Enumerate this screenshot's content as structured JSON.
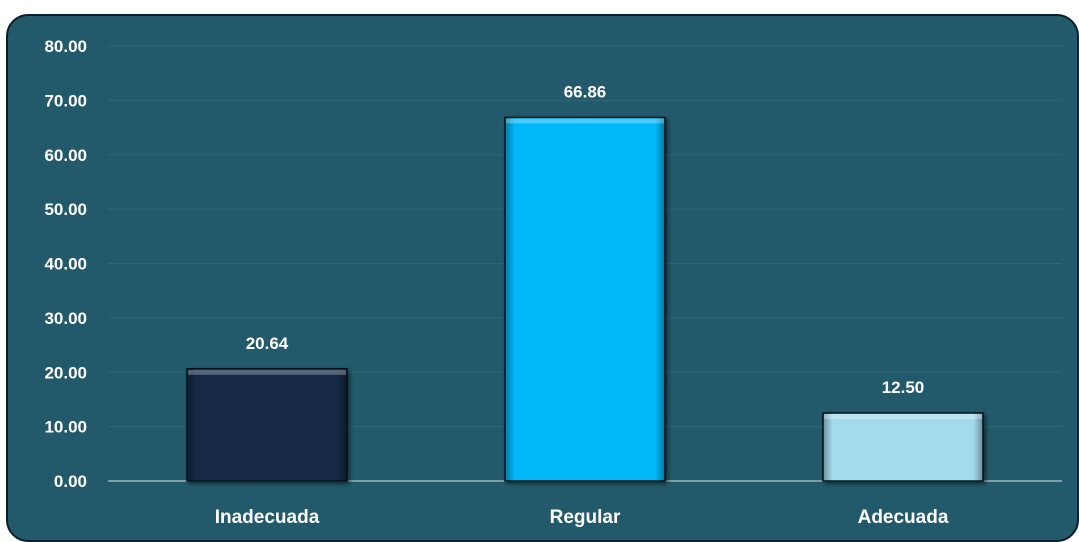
{
  "chart_data": {
    "type": "bar",
    "categories": [
      "Inadecuada",
      "Regular",
      "Adecuada"
    ],
    "values": [
      20.64,
      66.86,
      12.5
    ],
    "value_labels": [
      "20.64",
      "66.86",
      "12.50"
    ],
    "bar_colors": [
      "#172a47",
      "#00b7f8",
      "#a3daec"
    ],
    "ylim": [
      0,
      80
    ],
    "yticks": [
      "0.00",
      "10.00",
      "20.00",
      "30.00",
      "40.00",
      "50.00",
      "60.00",
      "70.00",
      "80.00"
    ],
    "grid": true,
    "legend": "none",
    "title": "",
    "xlabel": "",
    "ylabel": ""
  },
  "colors": {
    "background": "#235a6b",
    "border": "#0b1e2a",
    "gridline": "#2f6677",
    "axis": "#9fb4bc",
    "text": "#ffffff"
  }
}
